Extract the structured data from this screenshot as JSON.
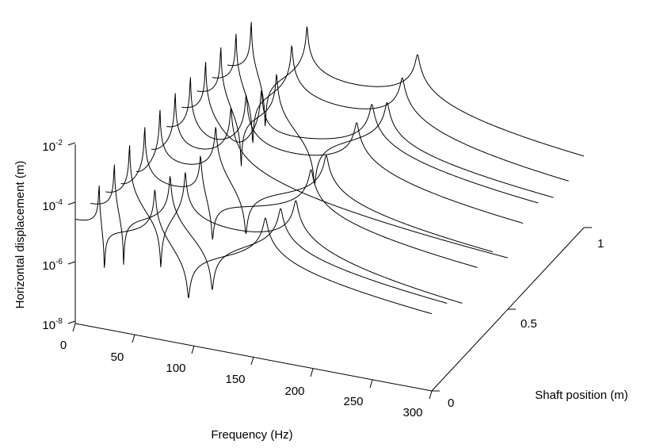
{
  "chart_data": {
    "type": "line",
    "projection": "3d-waterfall",
    "title": "",
    "xlabel": "Frequency (Hz)",
    "ylabel": "Shaft position (m)",
    "zlabel": "Horizontal displacement (m)",
    "x_ticks": [
      "0",
      "50",
      "100",
      "150",
      "200",
      "250",
      "300"
    ],
    "y_ticks": [
      "0",
      "0.5",
      "1"
    ],
    "z_ticks": [
      {
        "base": "10",
        "exp": "-8"
      },
      {
        "base": "10",
        "exp": "-6"
      },
      {
        "base": "10",
        "exp": "-4"
      },
      {
        "base": "10",
        "exp": "-2"
      }
    ],
    "xlim": [
      0,
      300
    ],
    "ylim": [
      0,
      1
    ],
    "zlim": [
      1e-08,
      0.01
    ],
    "zscale": "log",
    "grid": false,
    "legend": "none",
    "shaft_positions": [
      0,
      0.1,
      0.2,
      0.3,
      0.4,
      0.5,
      0.6,
      0.7,
      0.8,
      0.9,
      1.0
    ],
    "resonances_hz": [
      20,
      67,
      160
    ],
    "node_positions_mode2": [
      0.5
    ],
    "node_positions_mode3": [
      0.25,
      0.75
    ],
    "antiresonance_hz": [
      66,
      140
    ],
    "line_color": "#000000"
  }
}
